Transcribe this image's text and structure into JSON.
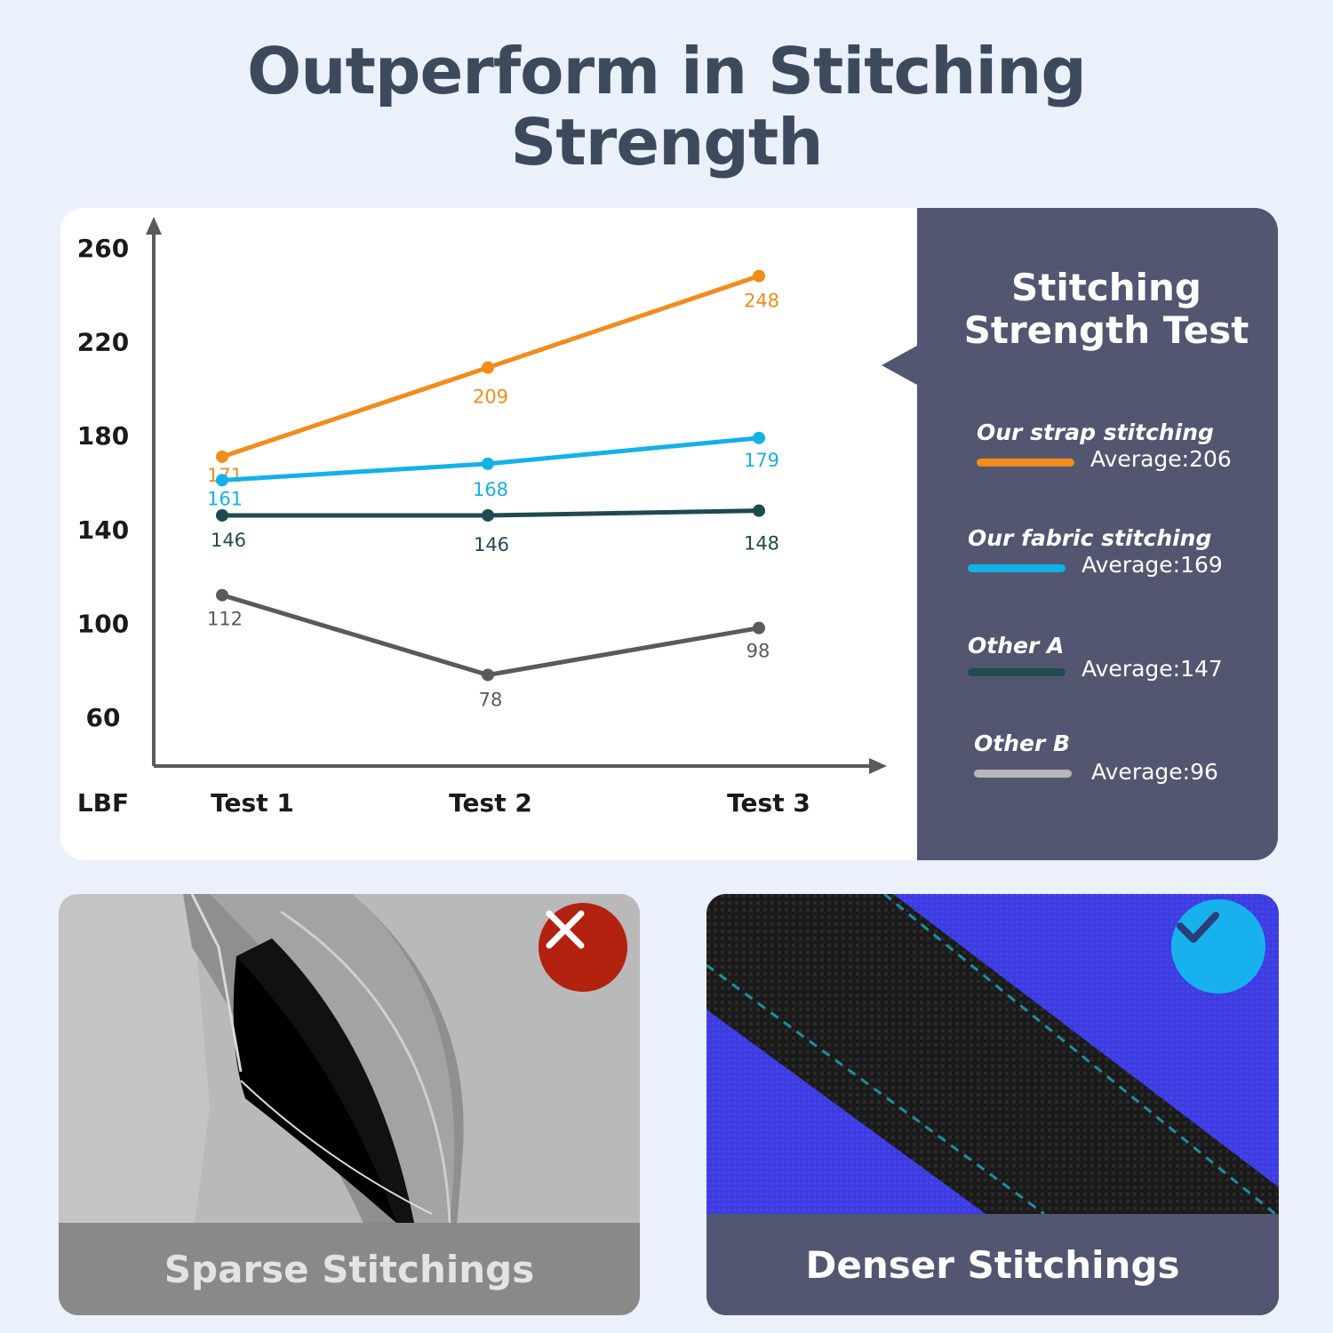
{
  "page": {
    "title_line1": "Outperform in Stitching",
    "title_line2": "Strength"
  },
  "chart_data": {
    "type": "line",
    "categories": [
      "Test 1",
      "Test 2",
      "Test 3"
    ],
    "ylabel": "LBF",
    "yticks": [
      260,
      220,
      180,
      140,
      100,
      60
    ],
    "ylim": [
      60,
      260
    ],
    "grid": false,
    "legend_position": "right",
    "series": [
      {
        "name": "Our strap stitching",
        "values": [
          171,
          209,
          248
        ],
        "color": "#f28c1b",
        "average_label": "Average:206"
      },
      {
        "name": "Our fabric stitching",
        "values": [
          161,
          168,
          179
        ],
        "color": "#14b1e7",
        "average_label": "Average:169"
      },
      {
        "name": "Other A",
        "values": [
          146,
          146,
          148
        ],
        "color": "#1f4a4f",
        "average_label": "Average:147"
      },
      {
        "name": "Other B",
        "values": [
          112,
          78,
          98
        ],
        "color": "#5a5a5a",
        "legend_color": "#b8b8b8",
        "average_label": "Average:96"
      }
    ]
  },
  "legend": {
    "title_line1": "Stitching",
    "title_line2": "Strength Test"
  },
  "panels": {
    "bad_label": "Sparse Stitchings",
    "good_label": "Denser Stitchings",
    "bad_icon": "close-icon",
    "good_icon": "check-icon",
    "bad_color": "#b3210f",
    "good_color": "#17b2ee"
  }
}
